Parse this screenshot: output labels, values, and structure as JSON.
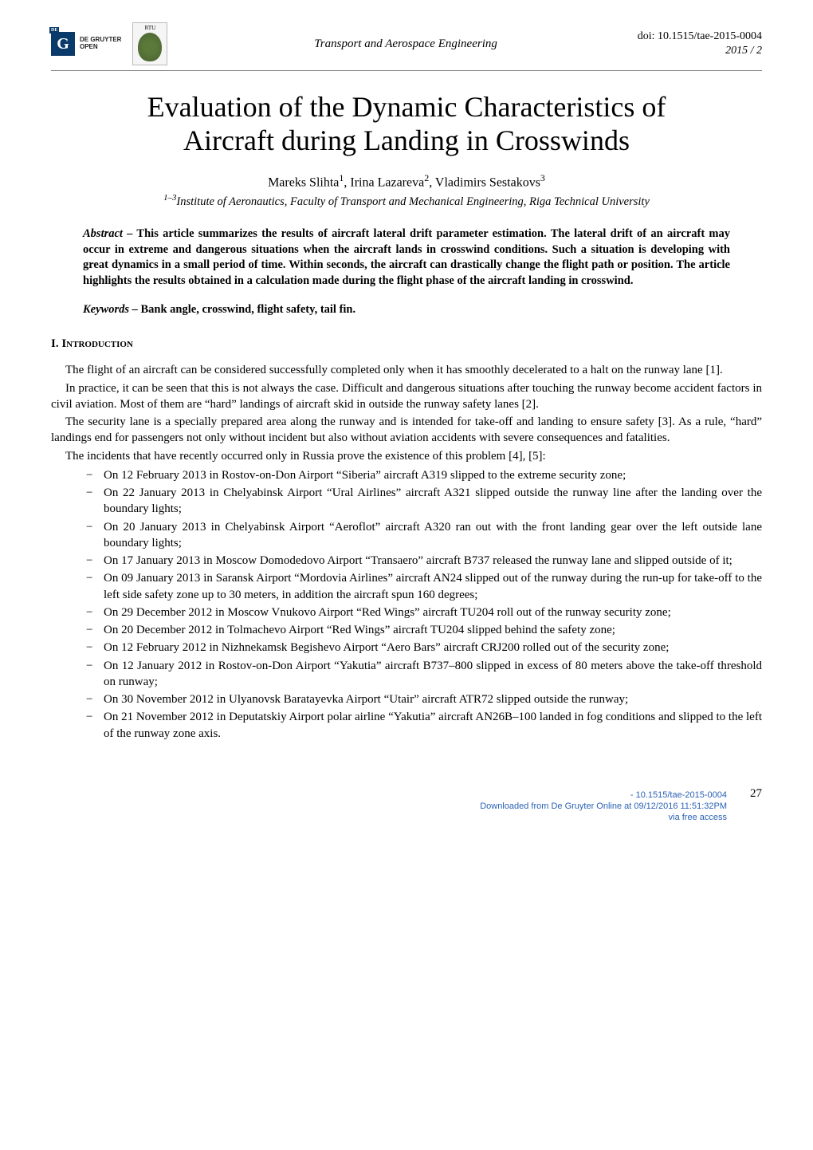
{
  "header": {
    "degruyter_text1": "DE GRUYTER",
    "degruyter_text2": "OPEN",
    "g": "G",
    "de": "DE",
    "rtu": "RTU",
    "journal": "Transport and Aerospace Engineering",
    "doi": "doi: 10.1515/tae-2015-0004",
    "issue": "2015 / 2"
  },
  "title": {
    "line1": "Evaluation of the Dynamic Characteristics of",
    "line2": "Aircraft during Landing in Crosswinds"
  },
  "authors": {
    "a1": "Mareks Slihta",
    "s1": "1",
    "a2": "Irina Lazareva",
    "s2": "2",
    "a3": "Vladimirs Sestakovs",
    "s3": "3"
  },
  "affiliation": {
    "sup": "1–3",
    "text": "Institute of Aeronautics, Faculty of Transport and Mechanical Engineering, Riga Technical University"
  },
  "abstract": {
    "label": "Abstract –",
    "text": " This article summarizes the results of aircraft lateral drift parameter estimation. The lateral drift of an aircraft may occur in extreme and dangerous situations when the aircraft lands in crosswind conditions. Such a situation is developing with great dynamics in a small period of time. Within seconds, the aircraft can drastically change the flight path or position. The article highlights the results obtained in a calculation made during the flight phase of the aircraft landing in crosswind."
  },
  "keywords": {
    "label": "Keywords –",
    "text": " Bank angle, crosswind, flight safety, tail fin."
  },
  "section1": {
    "num": "I. ",
    "head": "Introduction"
  },
  "p1": "The flight of an aircraft can be considered successfully completed only when it has smoothly decelerated to a halt on the runway lane [1].",
  "p2": "In practice, it can be seen that this is not always the case. Difficult and dangerous situations after touching the runway become accident factors in civil aviation. Most of them are “hard” landings of aircraft skid in outside the runway safety lanes [2].",
  "p3": "The security lane is a specially prepared area along the runway and is intended for take-off and landing to ensure safety [3]. As a rule, “hard” landings end for passengers not only without incident but also without aviation accidents with severe consequences and fatalities.",
  "p4": "The incidents that have recently occurred only in Russia prove the existence of this problem [4], [5]:",
  "bullets": [
    "On 12 February 2013 in Rostov-on-Don Airport “Siberia” aircraft A319 slipped to the extreme security zone;",
    "On 22 January 2013 in Chelyabinsk Airport “Ural Airlines” aircraft A321 slipped outside the runway line after the landing over the boundary lights;",
    "On 20 January 2013 in Chelyabinsk Airport “Aeroflot” aircraft A320 ran out with the front landing gear over the left outside lane boundary lights;",
    "On 17 January 2013 in Moscow Domodedovo Airport “Transaero” aircraft B737 released the runway lane and slipped outside of it;",
    "On 09 January 2013 in Saransk Airport “Mordovia Airlines” aircraft AN24 slipped out of the runway during the run-up for take-off to the left side safety zone up to 30 meters, in addition the aircraft spun 160 degrees;",
    "On 29 December 2012 in Moscow Vnukovo Airport “Red Wings” aircraft TU204 roll out of the runway security zone;",
    "On 20 December 2012 in Tolmachevo Airport “Red Wings” aircraft TU204 slipped behind the safety zone;",
    "On 12 February 2012 in Nizhnekamsk Begishevo Airport “Aero Bars” aircraft CRJ200 rolled out of the security zone;",
    "On 12 January 2012 in Rostov-on-Don Airport “Yakutia” aircraft B737–800 slipped in excess of 80 meters above the take-off threshold on runway;",
    "On 30 November 2012 in Ulyanovsk Baratayevka Airport “Utair” aircraft ATR72 slipped outside the runway;",
    "On 21 November 2012 in Deputatskiy Airport polar airline “Yakutia” aircraft AN26B–100 landed in fog conditions and slipped to the left of the runway zone axis."
  ],
  "footer": {
    "page": "27",
    "doi": "- 10.1515/tae-2015-0004",
    "downloaded": "Downloaded from De Gruyter Online at 09/12/2016 11:51:32PM",
    "via": "via free access"
  },
  "style": {
    "page_bg": "#ffffff",
    "text_color": "#000000",
    "footer_color": "#2a62b5",
    "logo_bg": "#0a3a6a",
    "body_font": "Georgia, 'Times New Roman', serif",
    "title_size_pt": 36,
    "body_size_pt": 15,
    "abstract_size_pt": 14.5
  }
}
